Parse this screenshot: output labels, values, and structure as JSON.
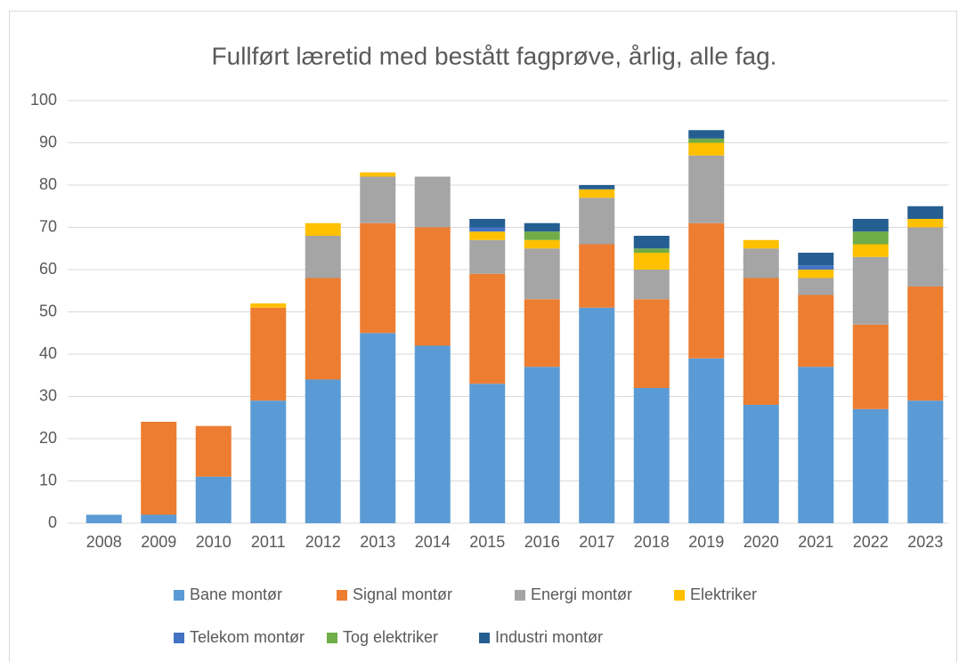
{
  "chart_data": {
    "type": "stacked_bar",
    "title": "Fullført læretid med bestått fagprøve, årlig, alle fag.",
    "categories": [
      "2008",
      "2009",
      "2010",
      "2011",
      "2012",
      "2013",
      "2014",
      "2015",
      "2016",
      "2017",
      "2018",
      "2019",
      "2020",
      "2021",
      "2022",
      "2023"
    ],
    "series": [
      {
        "name": "Bane montør",
        "color": "#5b9bd5",
        "values": [
          2,
          2,
          11,
          29,
          34,
          45,
          42,
          33,
          37,
          51,
          32,
          39,
          28,
          37,
          27,
          29
        ]
      },
      {
        "name": "Signal montør",
        "color": "#ed7d31",
        "values": [
          0,
          22,
          12,
          22,
          24,
          26,
          28,
          26,
          16,
          15,
          21,
          32,
          30,
          17,
          20,
          27
        ]
      },
      {
        "name": "Energi montør",
        "color": "#a5a5a5",
        "values": [
          0,
          0,
          0,
          0,
          10,
          11,
          12,
          8,
          12,
          11,
          7,
          16,
          7,
          4,
          16,
          14
        ]
      },
      {
        "name": "Elektriker",
        "color": "#ffc000",
        "values": [
          0,
          0,
          0,
          1,
          3,
          1,
          0,
          2,
          2,
          2,
          4,
          3,
          2,
          2,
          3,
          2
        ]
      },
      {
        "name": "Telekom montør",
        "color": "#4472c4",
        "values": [
          0,
          0,
          0,
          0,
          0,
          0,
          0,
          1,
          0,
          0,
          0,
          0,
          0,
          1,
          0,
          0
        ]
      },
      {
        "name": "Tog elektriker",
        "color": "#70ad47",
        "values": [
          0,
          0,
          0,
          0,
          0,
          0,
          0,
          0,
          2,
          0,
          1,
          1,
          0,
          0,
          3,
          0
        ]
      },
      {
        "name": "Industri montør",
        "color": "#255e91",
        "values": [
          0,
          0,
          0,
          0,
          0,
          0,
          0,
          2,
          2,
          1,
          3,
          2,
          0,
          3,
          3,
          3
        ]
      }
    ],
    "ylim": [
      0,
      100
    ],
    "yticks": [
      0,
      10,
      20,
      30,
      40,
      50,
      60,
      70,
      80,
      90,
      100
    ],
    "grid": true
  }
}
